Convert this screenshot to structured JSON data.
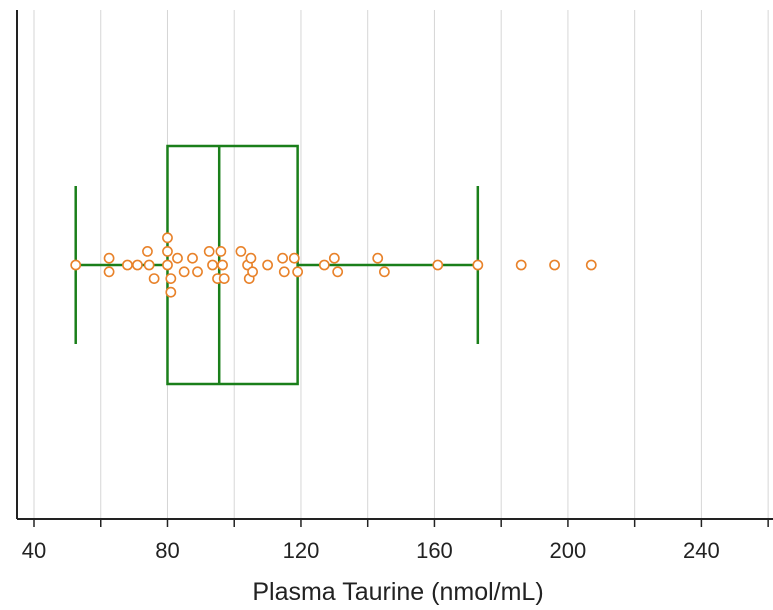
{
  "chart_data": {
    "type": "boxplot",
    "title": "",
    "xlabel": "Plasma Taurine (nmol/mL)",
    "ylabel": "",
    "xlim": [
      36,
      260
    ],
    "x_ticks": [
      40,
      80,
      120,
      160,
      200,
      240
    ],
    "x_tick_labels": [
      "40",
      "80",
      "120",
      "160",
      "200",
      "240"
    ],
    "x_minor_ticks": [
      60,
      100,
      140,
      180,
      220,
      260
    ],
    "grid": "vertical",
    "box": {
      "whisker_low": 52.5,
      "q1": 80,
      "median": 95.5,
      "q3": 119,
      "whisker_high": 173
    },
    "points": [
      {
        "x": 52.5,
        "y": 0
      },
      {
        "x": 62.5,
        "y": 1
      },
      {
        "x": 62.5,
        "y": -1
      },
      {
        "x": 68,
        "y": 0
      },
      {
        "x": 71,
        "y": 0
      },
      {
        "x": 74,
        "y": 2
      },
      {
        "x": 74.5,
        "y": 0
      },
      {
        "x": 76,
        "y": -2
      },
      {
        "x": 80,
        "y": 4
      },
      {
        "x": 80,
        "y": 2
      },
      {
        "x": 80,
        "y": 0
      },
      {
        "x": 81,
        "y": -2
      },
      {
        "x": 81,
        "y": -4
      },
      {
        "x": 83,
        "y": 1
      },
      {
        "x": 85,
        "y": -1
      },
      {
        "x": 87.5,
        "y": 1
      },
      {
        "x": 89,
        "y": -1
      },
      {
        "x": 92.5,
        "y": 2
      },
      {
        "x": 93.5,
        "y": 0
      },
      {
        "x": 95,
        "y": -2
      },
      {
        "x": 96,
        "y": 2
      },
      {
        "x": 96.5,
        "y": 0
      },
      {
        "x": 97,
        "y": -2
      },
      {
        "x": 102,
        "y": 2
      },
      {
        "x": 104,
        "y": 0
      },
      {
        "x": 104.5,
        "y": -2
      },
      {
        "x": 105,
        "y": 1
      },
      {
        "x": 105.5,
        "y": -1
      },
      {
        "x": 110,
        "y": 0
      },
      {
        "x": 114.5,
        "y": 1
      },
      {
        "x": 115,
        "y": -1
      },
      {
        "x": 118,
        "y": 1
      },
      {
        "x": 119,
        "y": -1
      },
      {
        "x": 127,
        "y": 0
      },
      {
        "x": 130,
        "y": 1
      },
      {
        "x": 131,
        "y": -1
      },
      {
        "x": 143,
        "y": 1
      },
      {
        "x": 145,
        "y": -1
      },
      {
        "x": 161,
        "y": 0
      },
      {
        "x": 173,
        "y": 0
      },
      {
        "x": 186,
        "y": 0
      },
      {
        "x": 196,
        "y": 0
      },
      {
        "x": 207,
        "y": 0
      }
    ],
    "colors": {
      "box": "#1a7f1a",
      "point_edge": "#e8822a",
      "point_fill": "#ffffff",
      "grid": "#d6d6d6",
      "axis": "#222222"
    }
  }
}
